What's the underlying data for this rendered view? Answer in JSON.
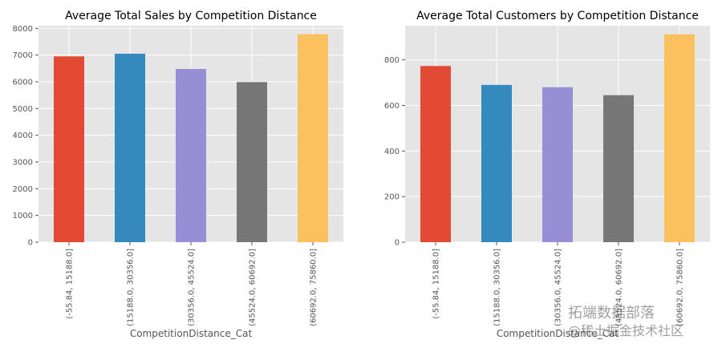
{
  "colors": {
    "plot_bg": "#e5e5e5",
    "grid": "#ffffff",
    "bars": [
      "#e24a33",
      "#348abd",
      "#988ed5",
      "#777777",
      "#fbc15e"
    ]
  },
  "chart_data": [
    {
      "type": "bar",
      "title": "Average Total Sales by Competition Distance",
      "xlabel": "CompetitionDistance_Cat",
      "ylabel": "",
      "categories": [
        "(-55.84, 15188.0]",
        "(15188.0, 30356.0]",
        "(30356.0, 45524.0]",
        "(45524.0, 60692.0]",
        "(60692.0, 75860.0]"
      ],
      "values": [
        6950,
        7050,
        6480,
        5990,
        7780
      ],
      "ylim": [
        0,
        8100
      ],
      "yticks": [
        0,
        1000,
        2000,
        3000,
        4000,
        5000,
        6000,
        7000,
        8000
      ],
      "grid": true
    },
    {
      "type": "bar",
      "title": "Average Total Customers by Competition Distance",
      "xlabel": "CompetitionDistance_Cat",
      "ylabel": "",
      "categories": [
        "(-55.84, 15188.0]",
        "(15188.0, 30356.0]",
        "(30356.0, 45524.0]",
        "(45524.0, 60692.0]",
        "(60692.0, 75860.0]"
      ],
      "values": [
        773,
        690,
        680,
        645,
        912
      ],
      "ylim": [
        0,
        950
      ],
      "yticks": [
        0,
        200,
        400,
        600,
        800
      ],
      "grid": true
    }
  ],
  "watermark": {
    "line1": "拓端数据部落",
    "line2": "@稀土掘金技术社区"
  }
}
